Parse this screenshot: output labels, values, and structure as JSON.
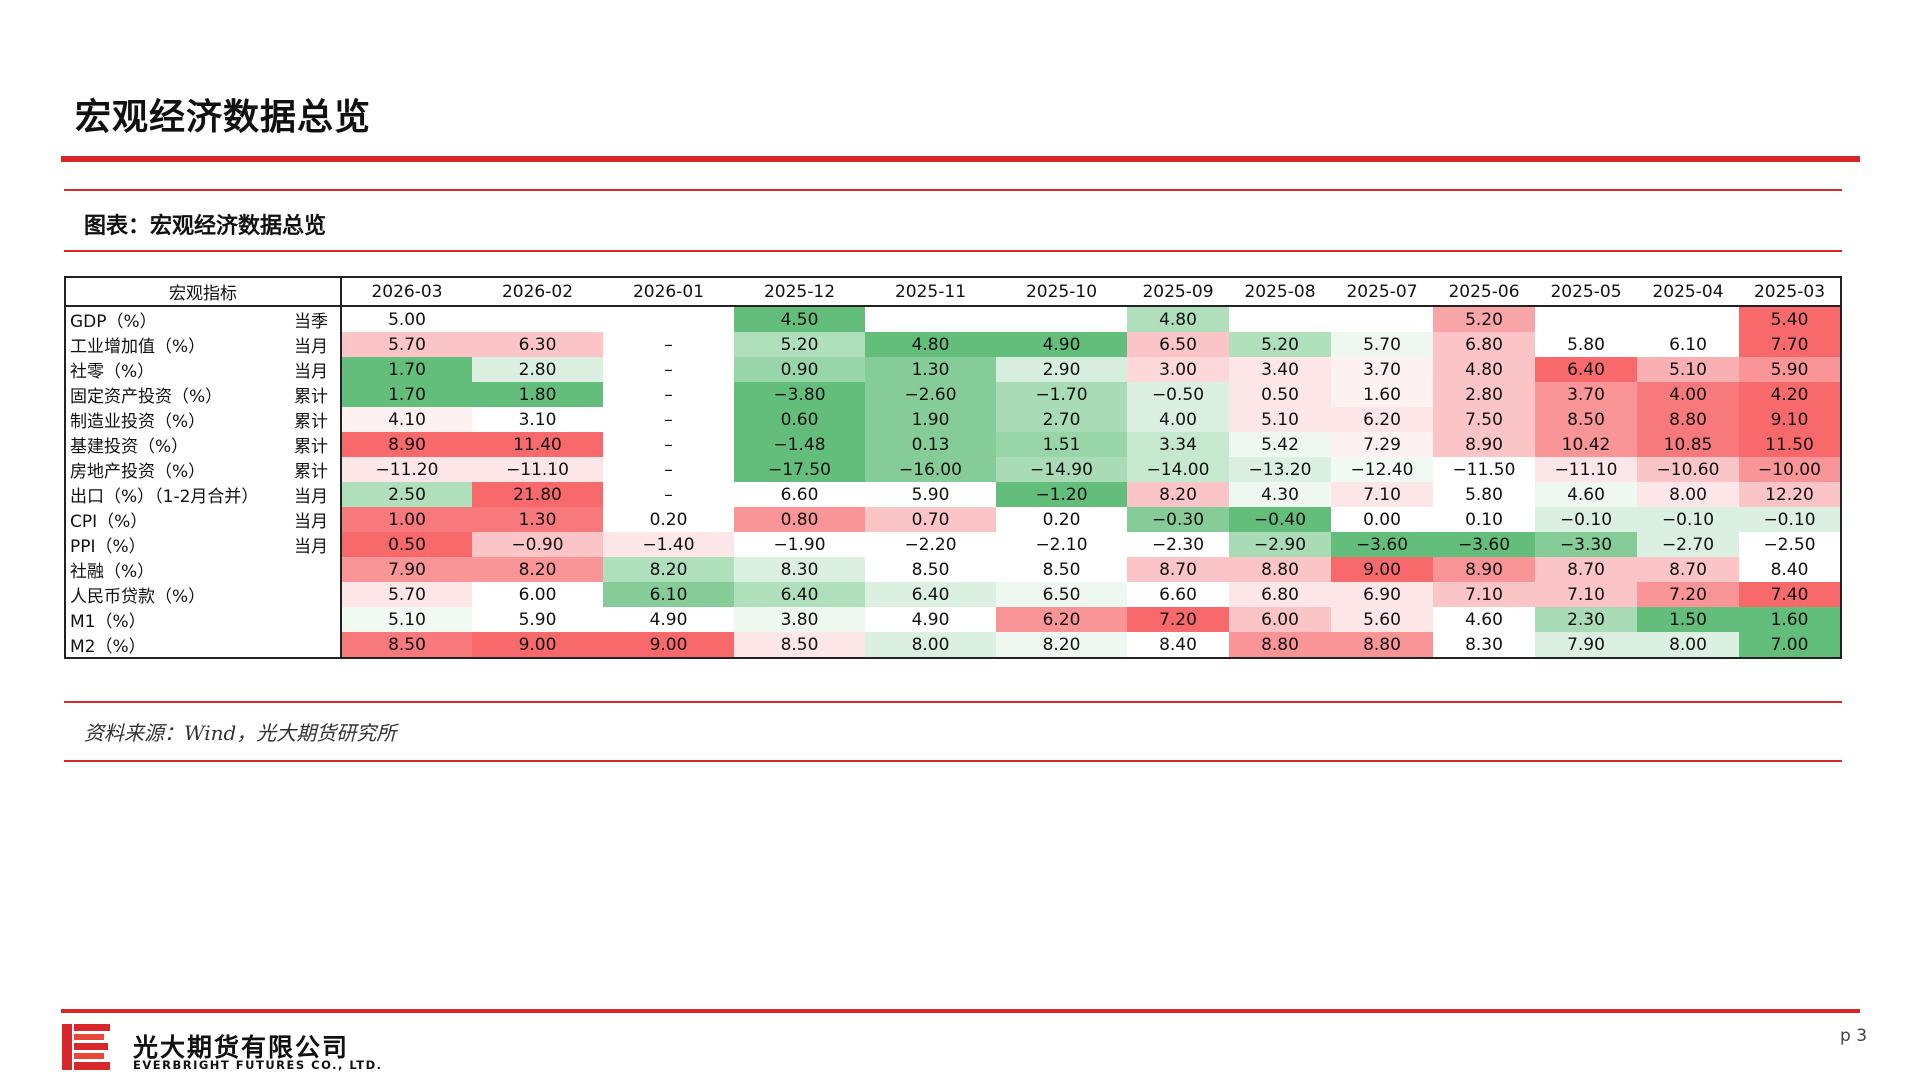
{
  "page": {
    "title": "宏观经济数据总览",
    "number": "p 3"
  },
  "chart": {
    "caption": "图表：宏观经济数据总览",
    "source": "资料来源：Wind，光大期货研究所"
  },
  "company": {
    "name_cn": "光大期货有限公司",
    "name_en": "EVERBRIGHT FUTURES CO., LTD."
  },
  "colors": {
    "accent_red": "#d7272b",
    "green_strong": "#63be7b",
    "red_strong": "#f8696b",
    "neutral": "#fcfcff"
  },
  "table": {
    "header_label": "宏观指标",
    "columns": [
      "2026-03",
      "2026-02",
      "2026-01",
      "2025-12",
      "2025-11",
      "2025-10",
      "2025-09",
      "2025-08",
      "2025-07",
      "2025-06",
      "2025-05",
      "2025-04",
      "2025-03"
    ],
    "rows": [
      {
        "name": "GDP（%）",
        "freq": "当季",
        "values": [
          "5.00",
          "",
          "",
          "4.50",
          "",
          "",
          "4.80",
          "",
          "",
          "5.20",
          "",
          "",
          "5.40"
        ]
      },
      {
        "name": "工业增加值（%）",
        "freq": "当月",
        "values": [
          "5.70",
          "6.30",
          "–",
          "5.20",
          "4.80",
          "4.90",
          "6.50",
          "5.20",
          "5.70",
          "6.80",
          "5.80",
          "6.10",
          "7.70"
        ]
      },
      {
        "name": "社零（%）",
        "freq": "当月",
        "values": [
          "1.70",
          "2.80",
          "–",
          "0.90",
          "1.30",
          "2.90",
          "3.00",
          "3.40",
          "3.70",
          "4.80",
          "6.40",
          "5.10",
          "5.90"
        ]
      },
      {
        "name": "固定资产投资（%）",
        "freq": "累计",
        "values": [
          "1.70",
          "1.80",
          "–",
          "−3.80",
          "−2.60",
          "−1.70",
          "−0.50",
          "0.50",
          "1.60",
          "2.80",
          "3.70",
          "4.00",
          "4.20"
        ]
      },
      {
        "name": "制造业投资（%）",
        "freq": "累计",
        "values": [
          "4.10",
          "3.10",
          "–",
          "0.60",
          "1.90",
          "2.70",
          "4.00",
          "5.10",
          "6.20",
          "7.50",
          "8.50",
          "8.80",
          "9.10"
        ]
      },
      {
        "name": "基建投资（%）",
        "freq": "累计",
        "values": [
          "8.90",
          "11.40",
          "–",
          "−1.48",
          "0.13",
          "1.51",
          "3.34",
          "5.42",
          "7.29",
          "8.90",
          "10.42",
          "10.85",
          "11.50"
        ]
      },
      {
        "name": "房地产投资（%）",
        "freq": "累计",
        "values": [
          "−11.20",
          "−11.10",
          "–",
          "−17.50",
          "−16.00",
          "−14.90",
          "−14.00",
          "−13.20",
          "−12.40",
          "−11.50",
          "−11.10",
          "−10.60",
          "−10.00"
        ]
      },
      {
        "name": "出口（%）（1-2月合并）",
        "freq": "当月",
        "values": [
          "2.50",
          "21.80",
          "–",
          "6.60",
          "5.90",
          "−1.20",
          "8.20",
          "4.30",
          "7.10",
          "5.80",
          "4.60",
          "8.00",
          "12.20"
        ]
      },
      {
        "name": "CPI（%）",
        "freq": "当月",
        "values": [
          "1.00",
          "1.30",
          "0.20",
          "0.80",
          "0.70",
          "0.20",
          "−0.30",
          "−0.40",
          "0.00",
          "0.10",
          "−0.10",
          "−0.10",
          "−0.10"
        ]
      },
      {
        "name": "PPI（%）",
        "freq": "当月",
        "values": [
          "0.50",
          "−0.90",
          "−1.40",
          "−1.90",
          "−2.20",
          "−2.10",
          "−2.30",
          "−2.90",
          "−3.60",
          "−3.60",
          "−3.30",
          "−2.70",
          "−2.50"
        ]
      },
      {
        "name": "社融（%）",
        "freq": "",
        "values": [
          "7.90",
          "8.20",
          "8.20",
          "8.30",
          "8.50",
          "8.50",
          "8.70",
          "8.80",
          "9.00",
          "8.90",
          "8.70",
          "8.70",
          "8.40"
        ]
      },
      {
        "name": "人民币贷款（%）",
        "freq": "",
        "values": [
          "5.70",
          "6.00",
          "6.10",
          "6.40",
          "6.40",
          "6.50",
          "6.60",
          "6.80",
          "6.90",
          "7.10",
          "7.10",
          "7.20",
          "7.40"
        ]
      },
      {
        "name": "M1（%）",
        "freq": "",
        "values": [
          "5.10",
          "5.90",
          "4.90",
          "3.80",
          "4.90",
          "6.20",
          "7.20",
          "6.00",
          "5.60",
          "4.60",
          "2.30",
          "1.50",
          "1.60"
        ]
      },
      {
        "name": "M2（%）",
        "freq": "",
        "values": [
          "8.50",
          "9.00",
          "9.00",
          "8.50",
          "8.00",
          "8.20",
          "8.40",
          "8.80",
          "8.80",
          "8.30",
          "7.90",
          "8.00",
          "7.00"
        ]
      }
    ],
    "fills": [
      [
        "#ffffff",
        "#ffffff",
        "#ffffff",
        "#63be7b",
        "#ffffff",
        "#ffffff",
        "#b0dfbc",
        "#ffffff",
        "#ffffff",
        "#f8a5a8",
        "#ffffff",
        "#ffffff",
        "#f8696b"
      ],
      [
        "#fbc5c8",
        "#fbc5c8",
        "#ffffff",
        "#b0dfbc",
        "#63be7b",
        "#63be7b",
        "#fbc5c8",
        "#b0dfbc",
        "#eef8f0",
        "#fbc5c8",
        "#ffffff",
        "#ffffff",
        "#f8696b"
      ],
      [
        "#63be7b",
        "#dcf0e2",
        "#ffffff",
        "#98d5a9",
        "#85cc98",
        "#d6eedd",
        "#fcd8da",
        "#fde6e8",
        "#fdf1f2",
        "#fbc5c8",
        "#f8696b",
        "#fab0b3",
        "#f99497"
      ],
      [
        "#63be7b",
        "#63be7b",
        "#ffffff",
        "#63be7b",
        "#85cc98",
        "#a9dbb6",
        "#dcf0e2",
        "#fde6e8",
        "#fdf1f2",
        "#fbc5c8",
        "#f99497",
        "#f8797c",
        "#f8696b"
      ],
      [
        "#fdf1f2",
        "#ffffff",
        "#ffffff",
        "#63be7b",
        "#85cc98",
        "#a9dbb6",
        "#dcf0e2",
        "#fde6e8",
        "#fde6e8",
        "#fbc5c8",
        "#f99497",
        "#f8797c",
        "#f8696b"
      ],
      [
        "#f8696b",
        "#f8696b",
        "#ffffff",
        "#63be7b",
        "#85cc98",
        "#98d5a9",
        "#c6e8cf",
        "#eef8f0",
        "#fdf1f2",
        "#fbc5c8",
        "#f99497",
        "#f8797c",
        "#f8696b"
      ],
      [
        "#fde6e8",
        "#fde6e8",
        "#ffffff",
        "#63be7b",
        "#85cc98",
        "#a9dbb6",
        "#c6e8cf",
        "#dcf0e2",
        "#f2faf4",
        "#ffffff",
        "#fde6e8",
        "#fbc5c8",
        "#f99497"
      ],
      [
        "#b0dfbc",
        "#f8696b",
        "#ffffff",
        "#ffffff",
        "#ffffff",
        "#63be7b",
        "#fbc5c8",
        "#eef8f0",
        "#fde6e8",
        "#ffffff",
        "#eef8f0",
        "#fde6e8",
        "#fbc5c8"
      ],
      [
        "#f8797c",
        "#f8797c",
        "#ffffff",
        "#f99497",
        "#fbc5c8",
        "#ffffff",
        "#85cc98",
        "#63be7b",
        "#ffffff",
        "#ffffff",
        "#dcf0e2",
        "#dcf0e2",
        "#dcf0e2"
      ],
      [
        "#f8696b",
        "#fbc5c8",
        "#fde6e8",
        "#ffffff",
        "#ffffff",
        "#ffffff",
        "#ffffff",
        "#a9dbb6",
        "#63be7b",
        "#63be7b",
        "#85cc98",
        "#dcf0e2",
        "#ffffff"
      ],
      [
        "#f99497",
        "#f99497",
        "#b0dfbc",
        "#dcf0e2",
        "#ffffff",
        "#ffffff",
        "#fbc5c8",
        "#fbc5c8",
        "#f8696b",
        "#f99497",
        "#fbc5c8",
        "#fbc5c8",
        "#ffffff"
      ],
      [
        "#fde6e8",
        "#ffffff",
        "#85cc98",
        "#b0dfbc",
        "#dcf0e2",
        "#eef8f0",
        "#ffffff",
        "#fde6e8",
        "#fde6e8",
        "#fbc5c8",
        "#fbc5c8",
        "#f99497",
        "#f8696b"
      ],
      [
        "#f2faf4",
        "#ffffff",
        "#ffffff",
        "#eef8f0",
        "#ffffff",
        "#f99497",
        "#f8696b",
        "#fbc5c8",
        "#fde6e8",
        "#ffffff",
        "#a9dbb6",
        "#63be7b",
        "#63be7b"
      ],
      [
        "#f8797c",
        "#f8696b",
        "#f8696b",
        "#fde6e8",
        "#dcf0e2",
        "#eef8f0",
        "#ffffff",
        "#f99497",
        "#f99497",
        "#ffffff",
        "#dcf0e2",
        "#dcf0e2",
        "#63be7b"
      ]
    ]
  }
}
